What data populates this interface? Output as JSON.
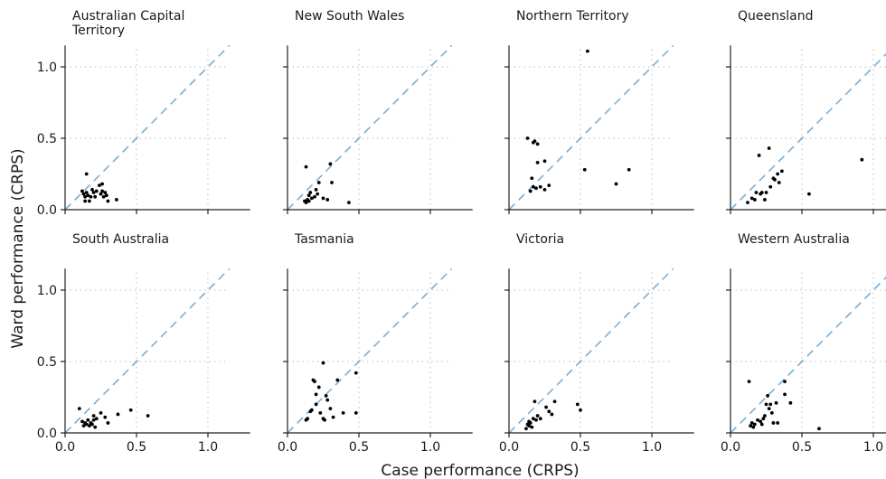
{
  "chart_data": {
    "type": "scatter",
    "xlabel": "Case performance (CRPS)",
    "ylabel": "Ward performance (CRPS)",
    "xlim": [
      0,
      1.15
    ],
    "ylim": [
      0,
      1.15
    ],
    "xticks": [
      "0.0",
      "0.5",
      "1.0"
    ],
    "yticks": [
      "0.0",
      "0.5",
      "1.0"
    ],
    "grid": "dotted at 0.5 and 1.0",
    "reference_line": "y = x dashed",
    "colors": {
      "points": "#000000",
      "reference_line": "#7fb3d5",
      "grid": "#c8c8c8",
      "axis": "#222222"
    },
    "panels": [
      {
        "title_lines": [
          "Australian Capital",
          "Territory"
        ],
        "points": [
          [
            0.12,
            0.13
          ],
          [
            0.13,
            0.11
          ],
          [
            0.14,
            0.09
          ],
          [
            0.15,
            0.12
          ],
          [
            0.16,
            0.1
          ],
          [
            0.15,
            0.25
          ],
          [
            0.17,
            0.06
          ],
          [
            0.18,
            0.09
          ],
          [
            0.19,
            0.14
          ],
          [
            0.2,
            0.12
          ],
          [
            0.21,
            0.09
          ],
          [
            0.24,
            0.17
          ],
          [
            0.25,
            0.11
          ],
          [
            0.26,
            0.18
          ],
          [
            0.27,
            0.09
          ],
          [
            0.28,
            0.12
          ],
          [
            0.29,
            0.1
          ],
          [
            0.3,
            0.06
          ],
          [
            0.36,
            0.07
          ],
          [
            0.14,
            0.06
          ],
          [
            0.22,
            0.13
          ],
          [
            0.26,
            0.13
          ]
        ]
      },
      {
        "title_lines": [
          "New South Wales"
        ],
        "points": [
          [
            0.13,
            0.3
          ],
          [
            0.12,
            0.06
          ],
          [
            0.13,
            0.05
          ],
          [
            0.15,
            0.06
          ],
          [
            0.15,
            0.1
          ],
          [
            0.16,
            0.12
          ],
          [
            0.17,
            0.08
          ],
          [
            0.19,
            0.09
          ],
          [
            0.2,
            0.14
          ],
          [
            0.21,
            0.11
          ],
          [
            0.22,
            0.19
          ],
          [
            0.25,
            0.08
          ],
          [
            0.28,
            0.07
          ],
          [
            0.3,
            0.32
          ],
          [
            0.31,
            0.19
          ],
          [
            0.43,
            0.05
          ],
          [
            0.14,
            0.07
          ]
        ]
      },
      {
        "title_lines": [
          "Northern Territory"
        ],
        "points": [
          [
            0.13,
            0.5
          ],
          [
            0.17,
            0.47
          ],
          [
            0.18,
            0.48
          ],
          [
            0.2,
            0.46
          ],
          [
            0.16,
            0.22
          ],
          [
            0.17,
            0.16
          ],
          [
            0.15,
            0.13
          ],
          [
            0.19,
            0.15
          ],
          [
            0.2,
            0.33
          ],
          [
            0.22,
            0.16
          ],
          [
            0.25,
            0.34
          ],
          [
            0.25,
            0.14
          ],
          [
            0.28,
            0.17
          ],
          [
            0.55,
            1.11
          ],
          [
            0.53,
            0.28
          ],
          [
            0.75,
            0.18
          ],
          [
            0.84,
            0.28
          ]
        ]
      },
      {
        "title_lines": [
          "Queensland"
        ],
        "points": [
          [
            0.12,
            0.05
          ],
          [
            0.15,
            0.08
          ],
          [
            0.17,
            0.07
          ],
          [
            0.18,
            0.12
          ],
          [
            0.2,
            0.38
          ],
          [
            0.21,
            0.11
          ],
          [
            0.22,
            0.12
          ],
          [
            0.24,
            0.07
          ],
          [
            0.25,
            0.12
          ],
          [
            0.27,
            0.43
          ],
          [
            0.28,
            0.16
          ],
          [
            0.3,
            0.22
          ],
          [
            0.31,
            0.21
          ],
          [
            0.33,
            0.25
          ],
          [
            0.34,
            0.19
          ],
          [
            0.36,
            0.27
          ],
          [
            0.55,
            0.11
          ],
          [
            0.92,
            0.35
          ]
        ]
      },
      {
        "title_lines": [
          "South Australia"
        ],
        "points": [
          [
            0.1,
            0.17
          ],
          [
            0.12,
            0.08
          ],
          [
            0.13,
            0.05
          ],
          [
            0.14,
            0.07
          ],
          [
            0.15,
            0.06
          ],
          [
            0.16,
            0.09
          ],
          [
            0.17,
            0.05
          ],
          [
            0.18,
            0.07
          ],
          [
            0.19,
            0.06
          ],
          [
            0.2,
            0.12
          ],
          [
            0.21,
            0.04
          ],
          [
            0.22,
            0.1
          ],
          [
            0.25,
            0.14
          ],
          [
            0.28,
            0.11
          ],
          [
            0.3,
            0.07
          ],
          [
            0.37,
            0.13
          ],
          [
            0.46,
            0.16
          ],
          [
            0.58,
            0.12
          ],
          [
            0.2,
            0.09
          ]
        ]
      },
      {
        "title_lines": [
          "Tasmania"
        ],
        "points": [
          [
            0.14,
            0.1
          ],
          [
            0.16,
            0.15
          ],
          [
            0.18,
            0.37
          ],
          [
            0.19,
            0.36
          ],
          [
            0.2,
            0.2
          ],
          [
            0.2,
            0.27
          ],
          [
            0.22,
            0.32
          ],
          [
            0.23,
            0.14
          ],
          [
            0.25,
            0.49
          ],
          [
            0.25,
            0.1
          ],
          [
            0.26,
            0.09
          ],
          [
            0.28,
            0.23
          ],
          [
            0.3,
            0.17
          ],
          [
            0.32,
            0.11
          ],
          [
            0.35,
            0.37
          ],
          [
            0.39,
            0.14
          ],
          [
            0.48,
            0.42
          ],
          [
            0.48,
            0.14
          ],
          [
            0.17,
            0.16
          ],
          [
            0.27,
            0.26
          ],
          [
            0.13,
            0.09
          ]
        ]
      },
      {
        "title_lines": [
          "Victoria"
        ],
        "points": [
          [
            0.12,
            0.03
          ],
          [
            0.13,
            0.06
          ],
          [
            0.14,
            0.05
          ],
          [
            0.15,
            0.07
          ],
          [
            0.16,
            0.04
          ],
          [
            0.17,
            0.1
          ],
          [
            0.18,
            0.22
          ],
          [
            0.19,
            0.09
          ],
          [
            0.2,
            0.12
          ],
          [
            0.22,
            0.1
          ],
          [
            0.26,
            0.18
          ],
          [
            0.28,
            0.15
          ],
          [
            0.3,
            0.13
          ],
          [
            0.32,
            0.22
          ],
          [
            0.48,
            0.2
          ],
          [
            0.5,
            0.16
          ],
          [
            0.14,
            0.08
          ]
        ]
      },
      {
        "title_lines": [
          "Western Australia"
        ],
        "points": [
          [
            0.13,
            0.36
          ],
          [
            0.14,
            0.05
          ],
          [
            0.15,
            0.07
          ],
          [
            0.16,
            0.04
          ],
          [
            0.17,
            0.06
          ],
          [
            0.19,
            0.09
          ],
          [
            0.21,
            0.08
          ],
          [
            0.22,
            0.06
          ],
          [
            0.24,
            0.12
          ],
          [
            0.25,
            0.2
          ],
          [
            0.26,
            0.26
          ],
          [
            0.28,
            0.2
          ],
          [
            0.29,
            0.14
          ],
          [
            0.3,
            0.07
          ],
          [
            0.32,
            0.21
          ],
          [
            0.33,
            0.07
          ],
          [
            0.38,
            0.36
          ],
          [
            0.38,
            0.27
          ],
          [
            0.42,
            0.21
          ],
          [
            0.62,
            0.03
          ],
          [
            0.27,
            0.17
          ],
          [
            0.23,
            0.1
          ]
        ]
      }
    ]
  }
}
